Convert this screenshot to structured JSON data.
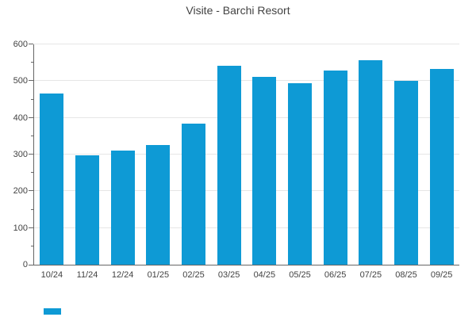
{
  "title": "Visite - Barchi Resort",
  "chart_data": {
    "type": "bar",
    "title": "Visite - Barchi Resort",
    "categories": [
      "10/24",
      "11/24",
      "12/24",
      "01/25",
      "02/25",
      "03/25",
      "04/25",
      "05/25",
      "06/25",
      "07/25",
      "08/25",
      "09/25"
    ],
    "values": [
      467,
      297,
      310,
      326,
      384,
      541,
      511,
      495,
      529,
      557,
      500,
      534
    ],
    "xlabel": "",
    "ylabel": "",
    "ylim": [
      0,
      600
    ],
    "yticks": [
      0,
      100,
      200,
      300,
      400,
      500,
      600
    ],
    "minor_yticks": [
      50,
      150,
      250,
      350,
      450,
      550
    ],
    "grid": true,
    "legend_position": "bottom-left",
    "bar_color": "#0e9ad5",
    "grid_color": "#e6e6e6",
    "axis_color": "#666666",
    "text_color": "#424242"
  }
}
